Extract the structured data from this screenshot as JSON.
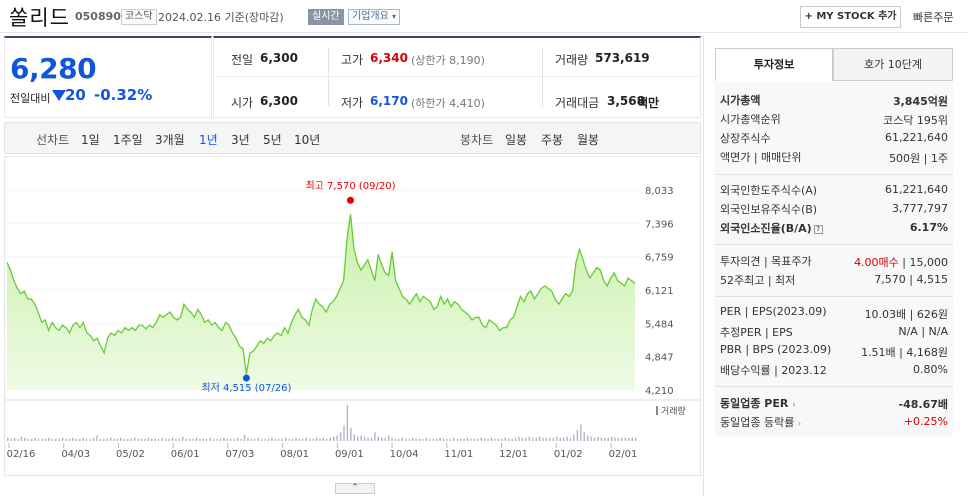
{
  "header": {
    "name": "쏠리드",
    "code": "050890",
    "market": "코스닥",
    "date_text": "2024.02.16  기준(장마감)",
    "realtime": "실시간",
    "company_info": "기업개요",
    "mystock": "+ MY STOCK 추가",
    "quick_order": "빠른주문"
  },
  "price": {
    "current": "6,280",
    "change_label": "전일대비",
    "change_amount": "20",
    "change_percent": "-0.32%"
  },
  "stats": {
    "prev_close_label": "전일",
    "prev_close": "6,300",
    "high_label": "고가",
    "high": "6,340",
    "upper_limit": "(상한가 8,190)",
    "volume_label": "거래량",
    "volume": "573,619",
    "open_label": "시가",
    "open": "6,300",
    "low_label": "저가",
    "low": "6,170",
    "lower_limit": "(하한가 4,410)",
    "trade_value_label": "거래대금",
    "trade_value": "3,568",
    "trade_value_unit": "백만"
  },
  "period_bar": {
    "line_chart_label": "선차트",
    "periods": [
      "1일",
      "1주일",
      "3개월",
      "1년",
      "3년",
      "5년",
      "10년"
    ],
    "active_period": "1년",
    "candle_label": "봉차트",
    "candle_periods": [
      "일봉",
      "주봉",
      "월봉"
    ]
  },
  "chart_data": {
    "type": "area",
    "x_tick_labels": [
      "02/16",
      "04/03",
      "05/02",
      "06/01",
      "07/03",
      "08/01",
      "09/01",
      "10/04",
      "11/01",
      "12/01",
      "01/02",
      "02/01"
    ],
    "y_tick_labels": [
      "8,033",
      "7,396",
      "6,759",
      "6,121",
      "5,484",
      "4,847",
      "4,210"
    ],
    "ylim": [
      4210,
      8033
    ],
    "values": [
      6650,
      6500,
      6300,
      6150,
      6050,
      6100,
      5950,
      5950,
      5850,
      5700,
      5500,
      5550,
      5350,
      5500,
      5400,
      5350,
      5450,
      5400,
      5300,
      5450,
      5500,
      5400,
      5500,
      5300,
      5250,
      5150,
      5200,
      5050,
      4920,
      5200,
      5300,
      5250,
      5350,
      5300,
      5400,
      5350,
      5400,
      5350,
      5450,
      5450,
      5380,
      5450,
      5400,
      5500,
      5650,
      5600,
      5650,
      5700,
      5600,
      5550,
      5600,
      5850,
      5750,
      5700,
      5600,
      5750,
      5650,
      5500,
      5550,
      5450,
      5500,
      5400,
      5350,
      5500,
      5450,
      5300,
      5200,
      5050,
      5000,
      4515,
      4920,
      4950,
      5050,
      5150,
      5100,
      5200,
      5150,
      5250,
      5300,
      5250,
      5400,
      5300,
      5500,
      5650,
      5750,
      5600,
      5550,
      5450,
      5750,
      5950,
      5850,
      5800,
      5700,
      5850,
      5900,
      6000,
      6150,
      6300,
      7100,
      7570,
      6900,
      6650,
      6500,
      6600,
      6700,
      6500,
      6300,
      6800,
      6600,
      6450,
      6400,
      6850,
      6300,
      6150,
      6000,
      5950,
      5850,
      5950,
      6050,
      5900,
      6000,
      5950,
      5900,
      5750,
      5800,
      6000,
      5850,
      5950,
      5800,
      5900,
      5850,
      5750,
      5700,
      5650,
      5550,
      5600,
      5600,
      5450,
      5400,
      5550,
      5500,
      5450,
      5350,
      5400,
      5400,
      5550,
      5600,
      5800,
      6000,
      5900,
      6050,
      6100,
      5950,
      6050,
      6150,
      6200,
      6150,
      6100,
      5950,
      5850,
      5950,
      6050,
      6000,
      6100,
      6650,
      6900,
      6700,
      6500,
      6350,
      6450,
      6550,
      6500,
      6300,
      6200,
      6350,
      6450,
      6300,
      6250,
      6200,
      6350,
      6300,
      6250
    ],
    "volume_values": [
      3,
      2,
      3,
      2,
      4,
      3,
      2,
      2,
      3,
      2,
      2,
      2,
      3,
      2,
      2,
      2,
      3,
      2,
      2,
      3,
      2,
      2,
      3,
      2,
      2,
      3,
      5,
      2,
      2,
      2,
      3,
      2,
      2,
      3,
      2,
      2,
      2,
      3,
      2,
      2,
      2,
      3,
      2,
      2,
      2,
      3,
      2,
      2,
      3,
      2,
      2,
      4,
      2,
      2,
      2,
      3,
      2,
      2,
      2,
      3,
      2,
      2,
      2,
      3,
      2,
      2,
      2,
      3,
      2,
      6,
      3,
      2,
      2,
      3,
      2,
      2,
      2,
      3,
      2,
      2,
      2,
      3,
      2,
      2,
      3,
      2,
      2,
      3,
      2,
      2,
      3,
      2,
      3,
      2,
      3,
      4,
      5,
      8,
      14,
      33,
      12,
      6,
      4,
      5,
      4,
      3,
      3,
      8,
      4,
      3,
      3,
      5,
      3,
      2,
      2,
      3,
      2,
      2,
      3,
      2,
      2,
      2,
      3,
      2,
      2,
      2,
      3,
      2,
      2,
      2,
      3,
      2,
      2,
      2,
      3,
      2,
      2,
      2,
      3,
      2,
      2,
      3,
      2,
      2,
      2,
      3,
      2,
      2,
      3,
      4,
      3,
      3,
      4,
      3,
      3,
      4,
      3,
      3,
      3,
      3,
      4,
      3,
      3,
      4,
      3,
      6,
      10,
      15,
      8,
      5,
      4,
      3,
      4,
      3,
      3,
      3,
      4,
      3,
      3,
      3,
      3,
      3,
      3,
      3
    ],
    "max_label": "최고 7,570 (09/20)",
    "min_label": "최저 4,515 (07/26)",
    "volume_label": "거래량",
    "colors": {
      "line": "#66cc33",
      "fill_top": "#c9f0a8",
      "max": "#e60000",
      "min": "#1155dd"
    }
  },
  "invest_info": {
    "tab_invest": "투자정보",
    "tab_hoga": "호가 10단계",
    "rows": [
      {
        "label": "시가총액",
        "value": "3,845억원",
        "bold": true
      },
      {
        "label": "시가총액순위",
        "value": "코스닥 195위"
      },
      {
        "label": "상장주식수",
        "value": "61,221,640"
      },
      {
        "label": "액면가 | 매매단위",
        "value": "500원 | 1주"
      },
      {
        "label": "외국인한도주식수(A)",
        "value": "61,221,640"
      },
      {
        "label": "외국인보유주식수(B)",
        "value": "3,777,797"
      },
      {
        "label": "외국인소진율(B/A)",
        "value": "6.17%",
        "bold": true
      },
      {
        "label": "투자의견 | 목표주가",
        "value": "4.00매수 | 15,000"
      },
      {
        "label": "52주최고 | 최저",
        "value": "7,570 | 4,515"
      },
      {
        "label": "PER | EPS(2023.09)",
        "value": "10.03배 | 626원"
      },
      {
        "label": "추정PER | EPS",
        "value": "N/A | N/A"
      },
      {
        "label": "PBR | BPS (2023.09)",
        "value": "1.51배 | 4,168원"
      },
      {
        "label": "배당수익률 | 2023.12",
        "value": "0.80%"
      },
      {
        "label": "동일업종 PER",
        "value": "-48.67배",
        "bold": true
      },
      {
        "label": "동일업종 등락률",
        "value": "+0.25%"
      }
    ]
  }
}
